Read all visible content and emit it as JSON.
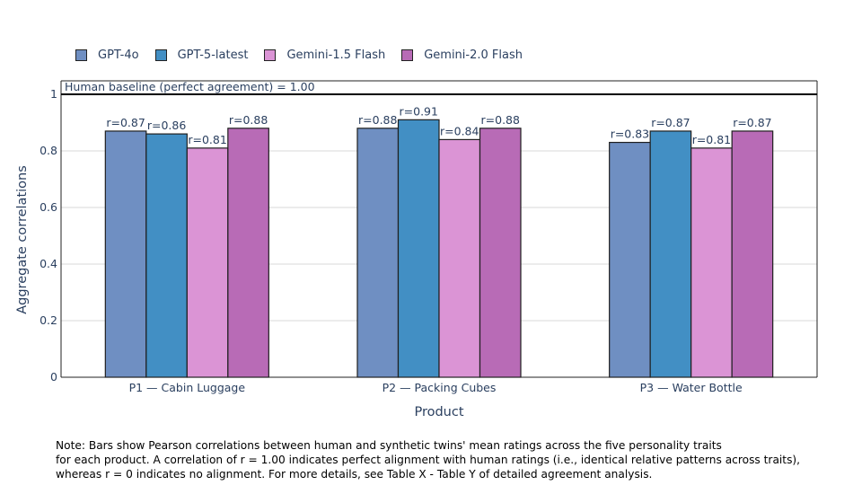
{
  "chart_data": {
    "type": "bar",
    "categories": [
      "P1 — Cabin Luggage",
      "P2 — Packing Cubes",
      "P3 — Water Bottle"
    ],
    "series": [
      {
        "name": "GPT-4o",
        "color": "#6f8fc2",
        "values": [
          0.87,
          0.88,
          0.83
        ],
        "labels": [
          "r=0.87",
          "r=0.88",
          "r=0.83"
        ]
      },
      {
        "name": "GPT-5-latest",
        "color": "#428fc4",
        "values": [
          0.86,
          0.91,
          0.87
        ],
        "labels": [
          "r=0.86",
          "r=0.91",
          "r=0.87"
        ]
      },
      {
        "name": "Gemini-1.5 Flash",
        "color": "#db94d5",
        "values": [
          0.81,
          0.84,
          0.81
        ],
        "labels": [
          "r=0.81",
          "r=0.84",
          "r=0.81"
        ]
      },
      {
        "name": "Gemini-2.0 Flash",
        "color": "#b86bb6",
        "values": [
          0.88,
          0.88,
          0.87
        ],
        "labels": [
          "r=0.88",
          "r=0.88",
          "r=0.87"
        ]
      }
    ],
    "xlabel": "Product",
    "ylabel": "Aggregate correlations",
    "ylim": [
      0,
      1
    ],
    "yticks": [
      0,
      0.2,
      0.4,
      0.6,
      0.8,
      1
    ],
    "ytick_labels": [
      "0",
      "0.2",
      "0.4",
      "0.6",
      "0.8",
      "1"
    ],
    "grid": true,
    "legend_position": "top-left",
    "baseline": {
      "value": 1.0,
      "label": "Human baseline (perfect agreement) = 1.00"
    }
  },
  "note": {
    "line1": "Note: Bars show Pearson correlations between human and synthetic twins' mean ratings across the five personality traits",
    "line2": "for each product. A correlation of r = 1.00 indicates perfect alignment with human ratings (i.e., identical relative patterns across traits),",
    "line3": "whereas r = 0 indicates no alignment. For more details, see Table X - Table Y of detailed agreement analysis."
  }
}
